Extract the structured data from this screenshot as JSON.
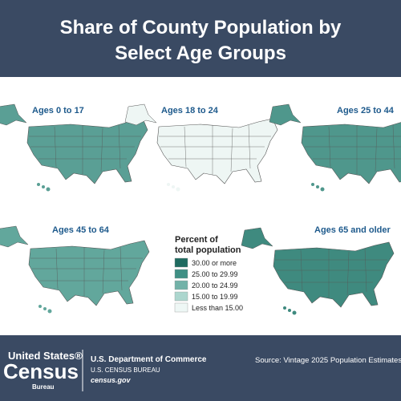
{
  "header": {
    "title_lines": [
      "Share of County Population by",
      "Select Age Groups"
    ]
  },
  "maps": [
    {
      "label": "Ages 0 to 17",
      "fill": "#5a9f95"
    },
    {
      "label": "Ages 18 to 24",
      "fill": "#eef6f4"
    },
    {
      "label": "Ages 25 to 44",
      "fill": "#4f978c"
    },
    {
      "label": "Ages 45 to 64",
      "fill": "#62a79c"
    },
    {
      "label": "Ages 65 and older",
      "fill": "#3f8a7f"
    }
  ],
  "legend": {
    "title_lines": [
      "Percent of",
      "total population"
    ],
    "items": [
      {
        "label": "30.00 or more",
        "color": "#1f6b60"
      },
      {
        "label": "25.00 to 29.99",
        "color": "#3f8f84"
      },
      {
        "label": "20.00 to 24.99",
        "color": "#72b2a8"
      },
      {
        "label": "15.00 to 19.99",
        "color": "#acd6ce"
      },
      {
        "label": "Less than 15.00",
        "color": "#eef7f5"
      }
    ]
  },
  "footer": {
    "logo_lines": [
      "United States®",
      "Census",
      "Bureau"
    ],
    "department": "U.S. Department of Commerce",
    "bureau": "U.S. CENSUS BUREAU",
    "website": "census.gov",
    "source": "Source: Vintage 2025 Population Estimates"
  }
}
